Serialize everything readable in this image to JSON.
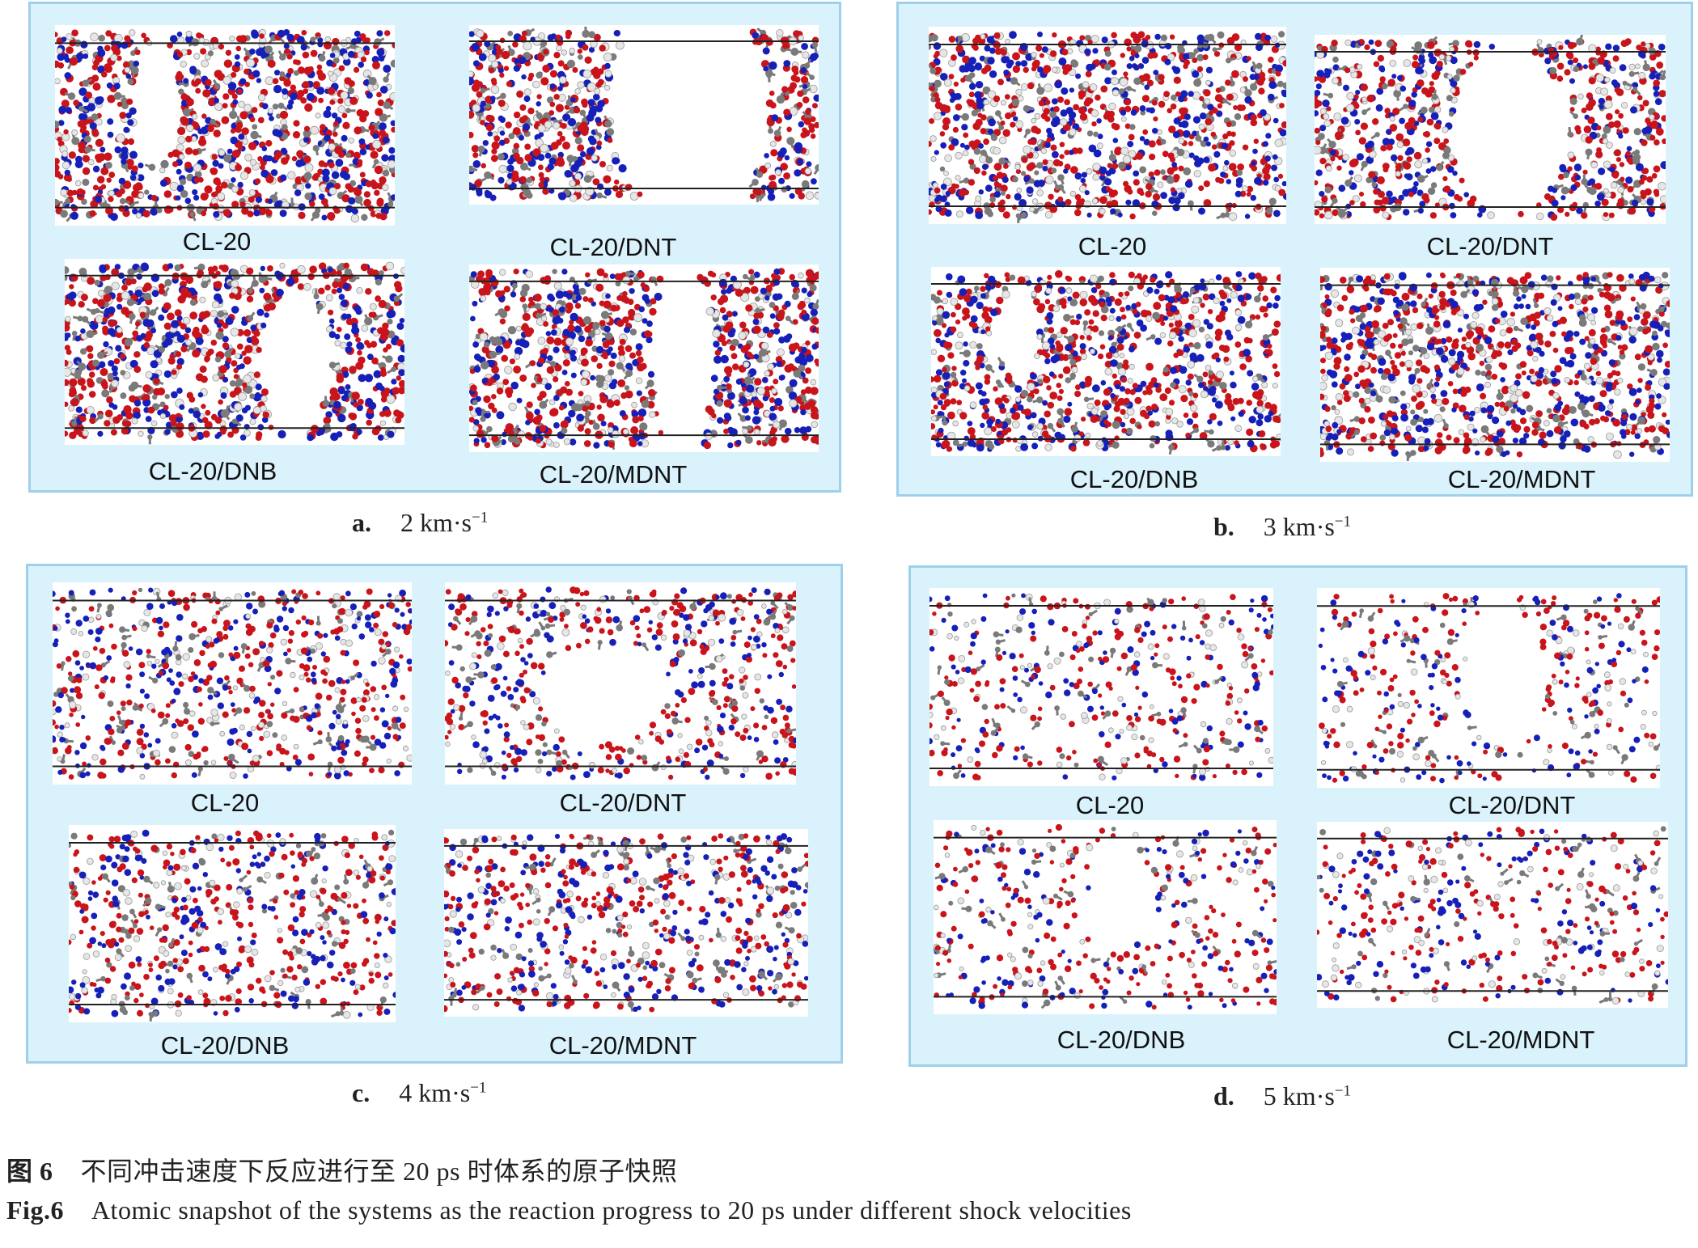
{
  "panels": [
    {
      "id": "a",
      "letter": "a.",
      "speed": "2",
      "unit": "km·s",
      "exp": "−1",
      "labels": [
        "CL-20",
        "CL-20/DNT",
        "CL-20/DNB",
        "CL-20/MDNT"
      ]
    },
    {
      "id": "b",
      "letter": "b.",
      "speed": "3",
      "unit": "km·s",
      "exp": "−1",
      "labels": [
        "CL-20",
        "CL-20/DNT",
        "CL-20/DNB",
        "CL-20/MDNT"
      ]
    },
    {
      "id": "c",
      "letter": "c.",
      "speed": "4",
      "unit": "km·s",
      "exp": "−1",
      "labels": [
        "CL-20",
        "CL-20/DNT",
        "CL-20/DNB",
        "CL-20/MDNT"
      ]
    },
    {
      "id": "d",
      "letter": "d.",
      "speed": "5",
      "unit": "km·s",
      "exp": "−1",
      "labels": [
        "CL-20",
        "CL-20/DNT",
        "CL-20/DNB",
        "CL-20/MDNT"
      ]
    }
  ],
  "caption": {
    "cn_number": "图 6",
    "cn_text": "不同冲击速度下反应进行至 20 ps 时体系的原子快照",
    "en_number": "Fig.6",
    "en_text": "Atomic snapshot of the systems as the reaction progress to 20 ps under different shock velocities"
  },
  "colors": {
    "panel_bg": "#d9f2fb",
    "panel_border": "#9fd0ea",
    "oxygen": "#c8141a",
    "nitrogen": "#1620b8",
    "carbon": "#7a7a7a",
    "hydrogen": "#e6e6e6"
  }
}
